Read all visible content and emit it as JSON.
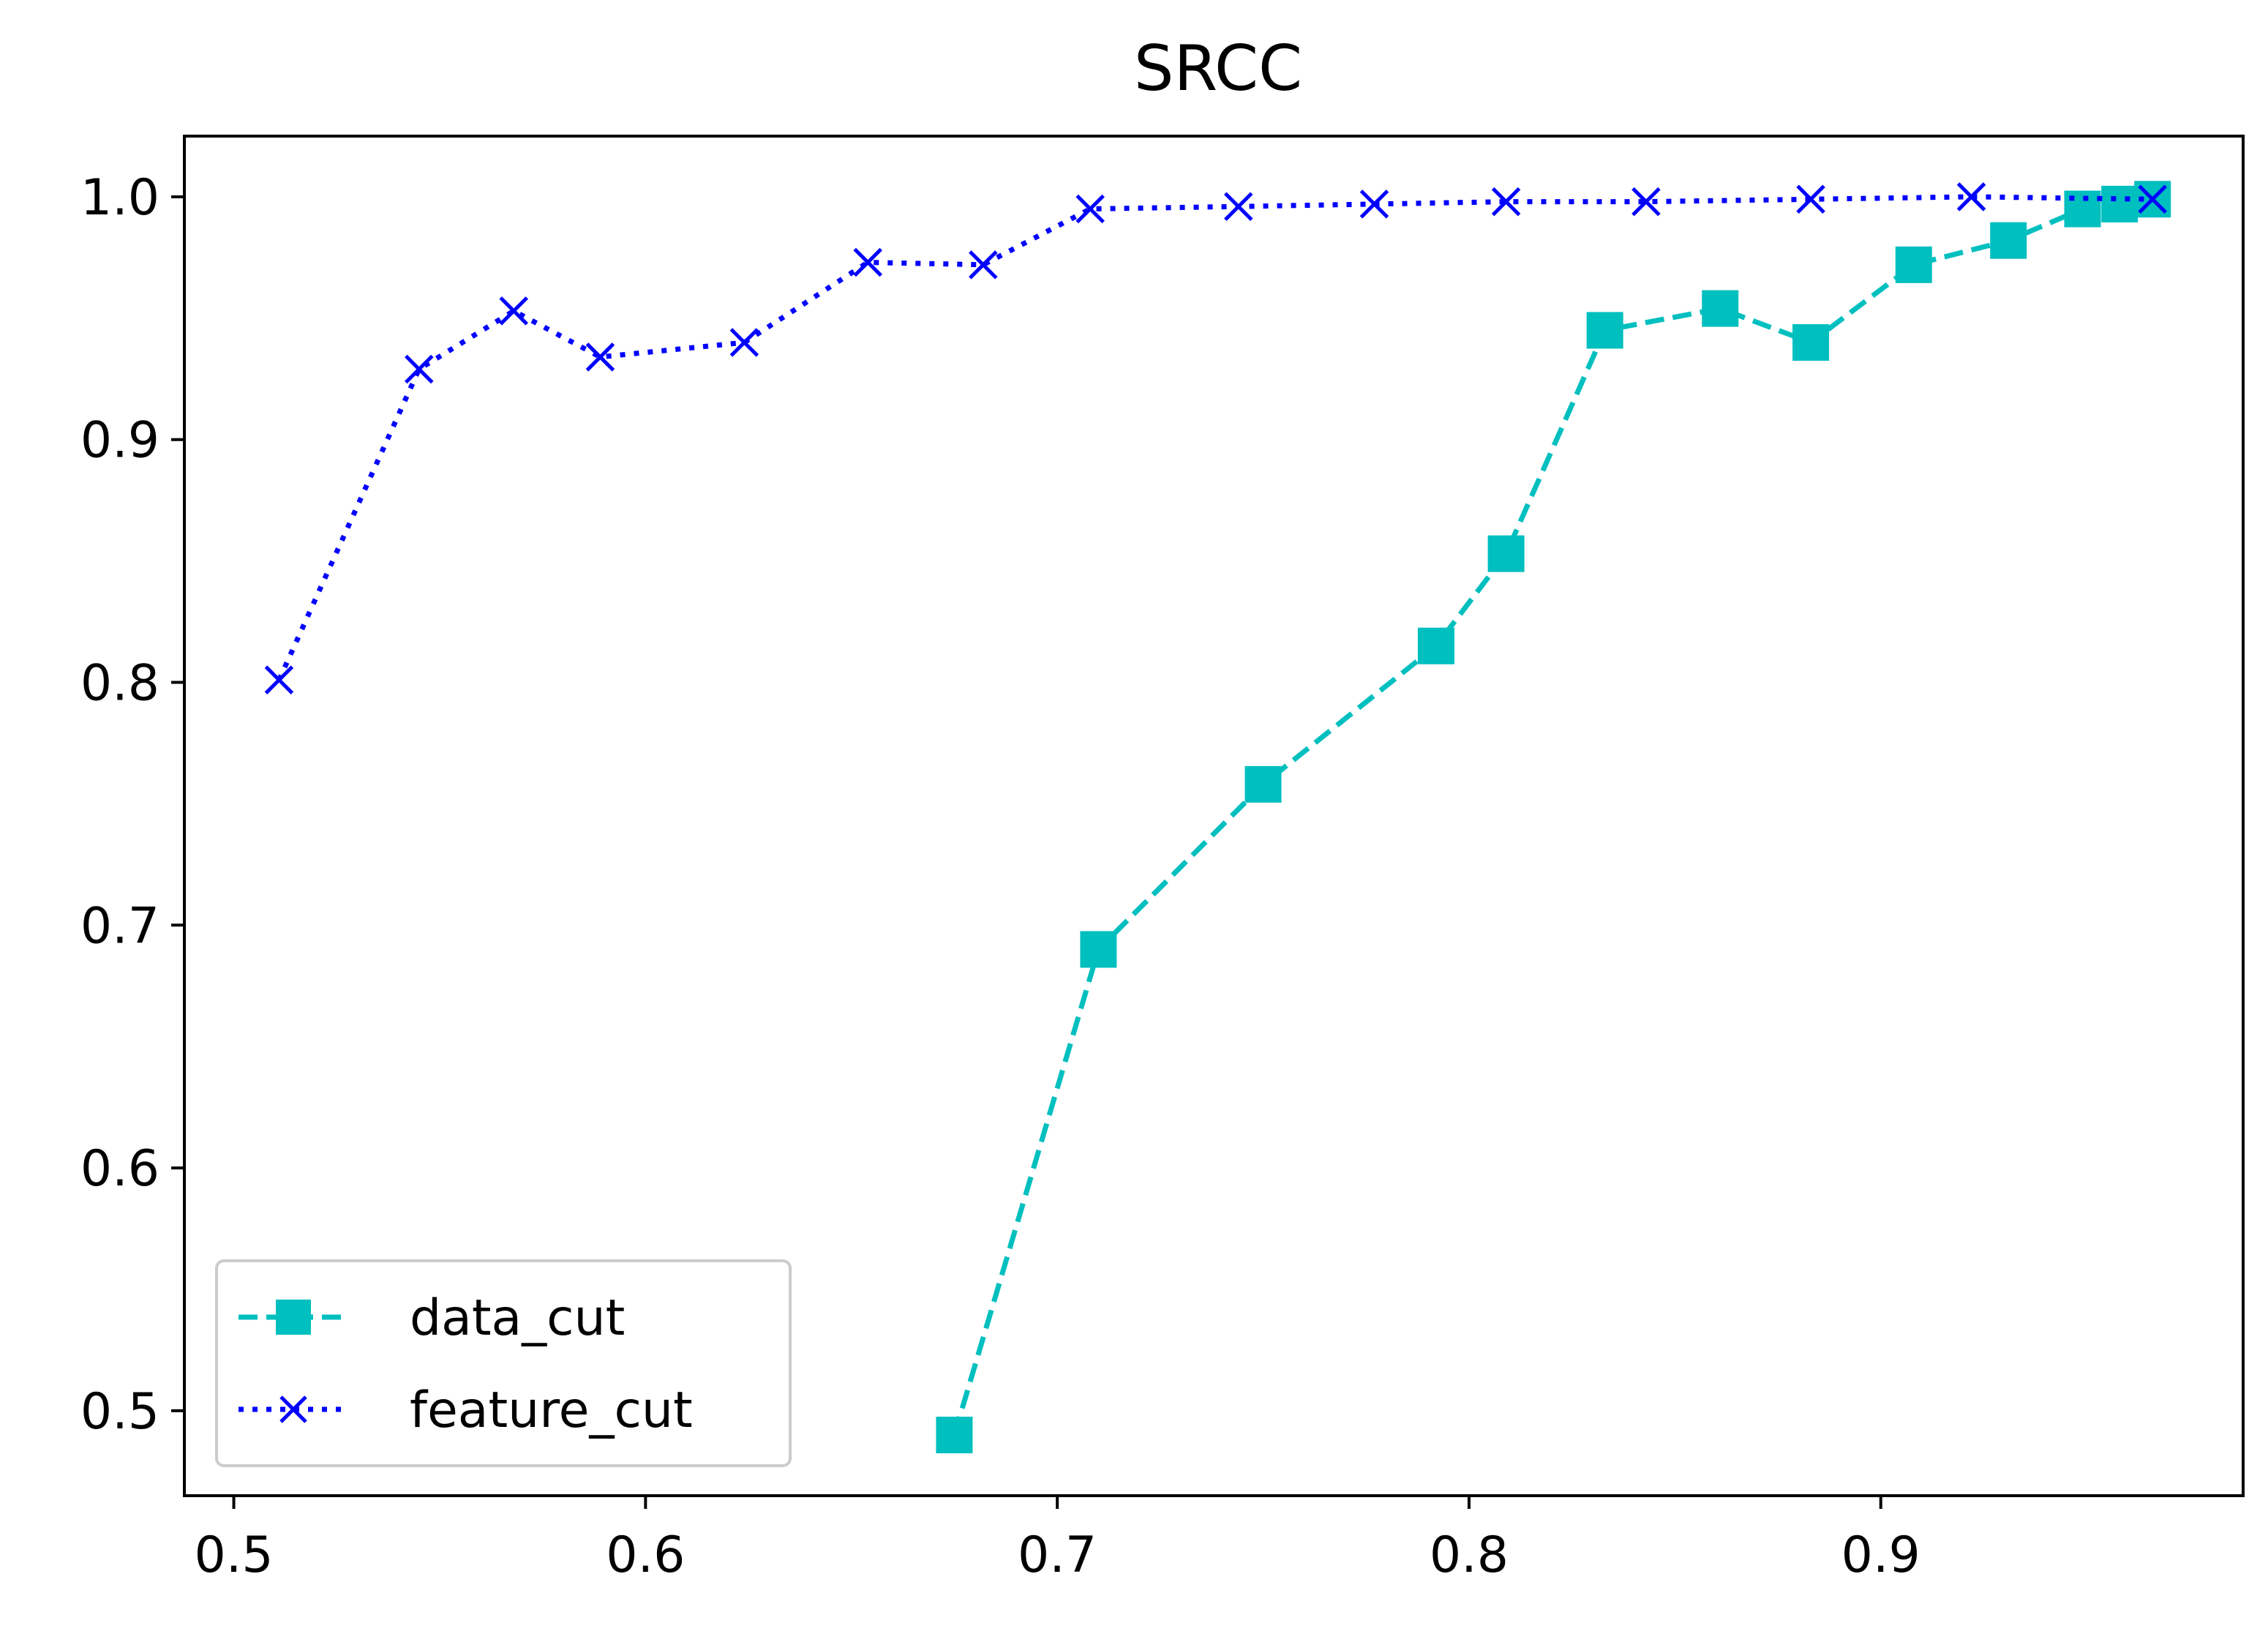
{
  "chart_data": {
    "type": "line",
    "title": "SRCC",
    "xlabel": "",
    "ylabel": "",
    "xlim": [
      0.488,
      0.988
    ],
    "ylim": [
      0.465,
      1.025
    ],
    "x_ticks": [
      0.5,
      0.6,
      0.7,
      0.8,
      0.9
    ],
    "x_tick_labels": [
      "0.5",
      "0.6",
      "0.7",
      "0.8",
      "0.9"
    ],
    "y_ticks": [
      0.5,
      0.6,
      0.7,
      0.8,
      0.9,
      1.0
    ],
    "y_tick_labels": [
      "0.5",
      "0.6",
      "0.7",
      "0.8",
      "0.9",
      "1.0"
    ],
    "grid": false,
    "legend_position": "lower-left",
    "series": [
      {
        "name": "data_cut",
        "color": "#00bfbf",
        "line_style": "dashed",
        "marker": "square",
        "x": [
          0.675,
          0.71,
          0.75,
          0.792,
          0.809,
          0.833,
          0.861,
          0.883,
          0.908,
          0.931,
          0.949,
          0.958,
          0.966
        ],
        "y": [
          0.49,
          0.69,
          0.758,
          0.815,
          0.853,
          0.945,
          0.954,
          0.94,
          0.972,
          0.982,
          0.995,
          0.997,
          0.999
        ]
      },
      {
        "name": "feature_cut",
        "color": "#0000ff",
        "line_style": "dotted",
        "marker": "x",
        "x": [
          0.511,
          0.545,
          0.568,
          0.589,
          0.624,
          0.654,
          0.682,
          0.708,
          0.744,
          0.777,
          0.809,
          0.843,
          0.883,
          0.922,
          0.966
        ],
        "y": [
          0.801,
          0.929,
          0.953,
          0.934,
          0.94,
          0.973,
          0.972,
          0.995,
          0.996,
          0.997,
          0.998,
          0.998,
          0.999,
          1.0,
          0.999
        ]
      }
    ]
  }
}
